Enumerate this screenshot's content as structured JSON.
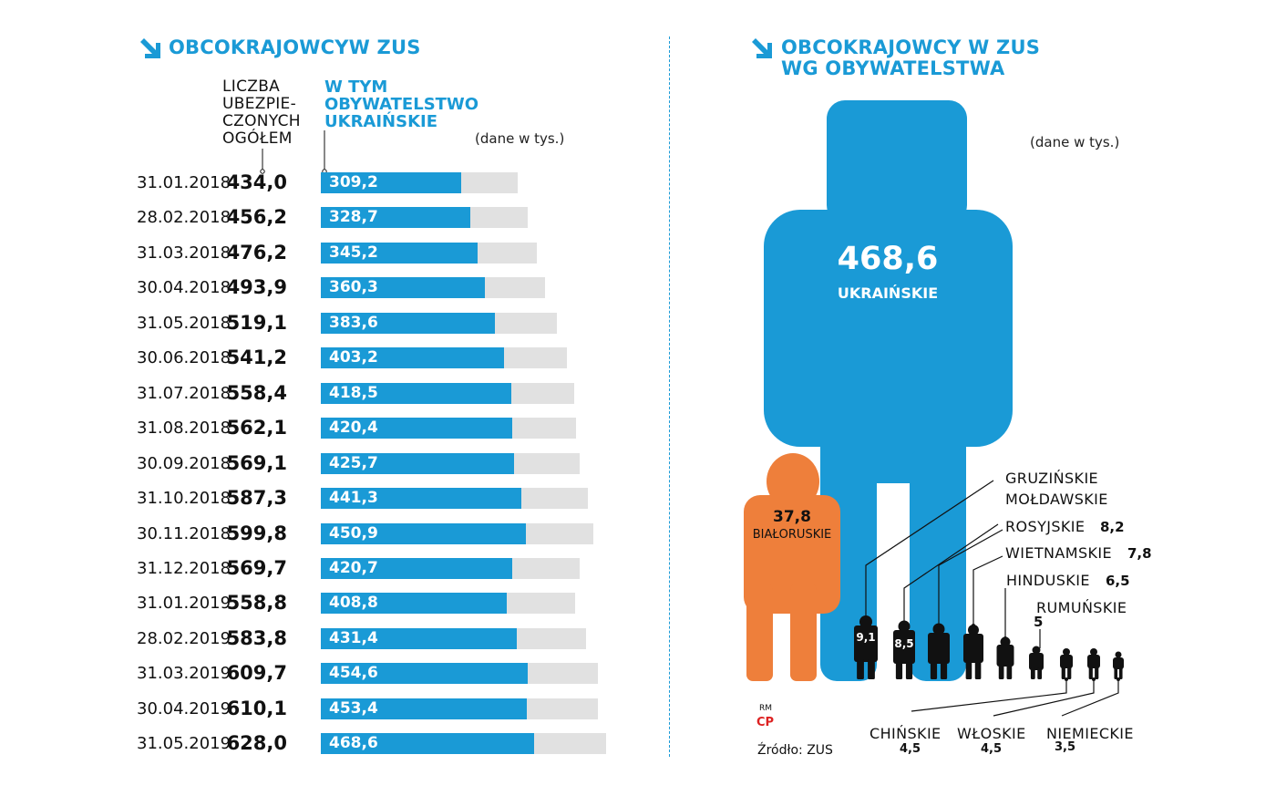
{
  "left": {
    "title": "OBCOKRAJOWCYW ZUS",
    "header_total": [
      "LICZBA",
      "UBEZPIE-",
      "CZONYCH",
      "OGÓŁEM"
    ],
    "header_ua": [
      "W TYM",
      "OBYWATELSTWO",
      "UKRAIŃSKIE"
    ],
    "unit": "(dane w tys.)"
  },
  "right": {
    "title_line1": "OBCOKRAJOWCY W ZUS",
    "title_line2": "WG OBYWATELSTWA",
    "unit": "(dane w tys.)",
    "ukr_value": "468,6",
    "ukr_label": "UKRAIŃSKIE",
    "bel_value": "37,8",
    "bel_label": "BIAŁORUSKIE",
    "labels": {
      "gruz": "GRUZIŃSKIE",
      "mold": "MOŁDAWSKIE",
      "ros": "ROSYJSKIE",
      "ros_val": "8,2",
      "wiet": "WIETNAMSKIE",
      "wiet_val": "7,8",
      "hind": "HINDUSKIE",
      "hind_val": "6,5",
      "rum": "RUMUŃSKIE",
      "rum_val": "5",
      "gruz_val": "9,1",
      "mold_val": "8,5",
      "chin": "CHIŃSKIE",
      "chin_val": "4,5",
      "wlo": "WŁOSKIE",
      "wlo_val": "4,5",
      "niem": "NIEMIECKIE",
      "niem_val": "3,5"
    },
    "logo_top": "RM",
    "logo_bottom": "CP",
    "source": "Źródło: ZUS",
    "colors": {
      "blue": "#1a9ad6",
      "orange": "#ee7f3b",
      "black": "#111111"
    }
  },
  "chart_data": [
    {
      "type": "bar",
      "title": "OBCOKRAJOWCYW ZUS",
      "unit": "(dane w tys.)",
      "categories": [
        "31.01.2018",
        "28.02.2018",
        "31.03.2018",
        "30.04.2018",
        "31.05.2018",
        "30.06.2018",
        "31.07.2018",
        "31.08.2018",
        "30.09.2018",
        "31.10.2018",
        "30.11.2018",
        "31.12.2018",
        "31.01.2019",
        "28.02.2019",
        "31.03.2019",
        "30.04.2019",
        "31.05.2019"
      ],
      "series": [
        {
          "name": "LICZBA UBEZPIECZONYCH OGÓŁEM",
          "values": [
            434.0,
            456.2,
            476.2,
            493.9,
            519.1,
            541.2,
            558.4,
            562.1,
            569.1,
            587.3,
            599.8,
            569.7,
            558.8,
            583.8,
            609.7,
            610.1,
            628.0
          ],
          "labels": [
            "434,0",
            "456,2",
            "476,2",
            "493,9",
            "519,1",
            "541,2",
            "558,4",
            "562,1",
            "569,1",
            "587,3",
            "599,8",
            "569,7",
            "558,8",
            "583,8",
            "609,7",
            "610,1",
            "628,0"
          ]
        },
        {
          "name": "W TYM OBYWATELSTWO UKRAIŃSKIE",
          "values": [
            309.2,
            328.7,
            345.2,
            360.3,
            383.6,
            403.2,
            418.5,
            420.4,
            425.7,
            441.3,
            450.9,
            420.7,
            408.8,
            431.4,
            454.6,
            453.4,
            468.6
          ],
          "labels": [
            "309,2",
            "328,7",
            "345,2",
            "360,3",
            "383,6",
            "403,2",
            "418,5",
            "420,4",
            "425,7",
            "441,3",
            "450,9",
            "420,7",
            "408,8",
            "431,4",
            "454,6",
            "453,4",
            "468,6"
          ]
        }
      ]
    },
    {
      "type": "bar",
      "title": "OBCOKRAJOWCY W ZUS WG OBYWATELSTWA",
      "unit": "(dane w tys.)",
      "categories": [
        "UKRAIŃSKIE",
        "BIAŁORUSKIE",
        "GRUZIŃSKIE",
        "MOŁDAWSKIE",
        "ROSYJSKIE",
        "WIETNAMSKIE",
        "HINDUSKIE",
        "RUMUŃSKIE",
        "CHIŃSKIE",
        "WŁOSKIE",
        "NIEMIECKIE"
      ],
      "values": [
        468.6,
        37.8,
        9.1,
        8.5,
        8.2,
        7.8,
        6.5,
        5,
        4.5,
        4.5,
        3.5
      ]
    }
  ]
}
